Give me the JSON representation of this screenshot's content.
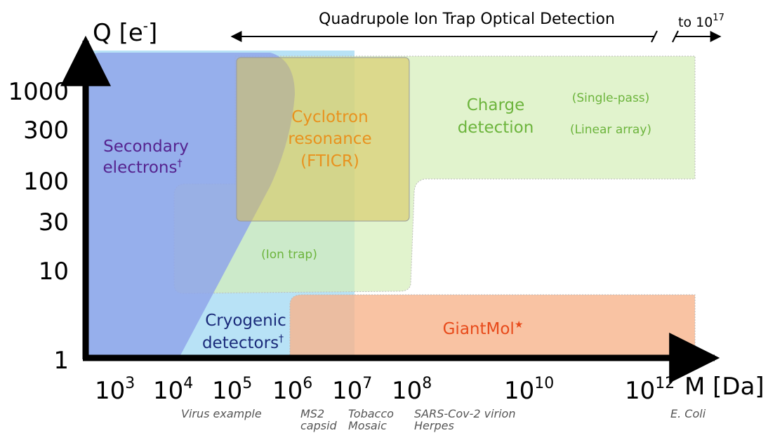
{
  "y_axis": {
    "label": {
      "main": "Q [e",
      "sup": "-",
      "end": "]"
    },
    "ticks": [
      "1000",
      "300",
      "100",
      "30",
      "10",
      "1"
    ]
  },
  "x_axis": {
    "label": "M [Da]",
    "ticks": [
      {
        "base": "10",
        "exp": "3"
      },
      {
        "base": "10",
        "exp": "4"
      },
      {
        "base": "10",
        "exp": "5"
      },
      {
        "base": "10",
        "exp": "6"
      },
      {
        "base": "10",
        "exp": "7"
      },
      {
        "base": "10",
        "exp": "8"
      },
      {
        "base": "10",
        "exp": "10"
      },
      {
        "base": "10",
        "exp": "12"
      }
    ],
    "examples": [
      "Virus example",
      "MS2",
      "capsid",
      "Tobacco",
      "Mosaic",
      "SARS-Cov-2 virion",
      "Herpes",
      "E. Coli"
    ]
  },
  "top_arrow": {
    "label": "Quadrupole Ion Trap Optical Detection",
    "extension": {
      "text": "to 10",
      "sup": "17"
    }
  },
  "regions": {
    "secondary_electrons": {
      "lines": [
        "Secondary",
        "electrons"
      ],
      "mark": "†"
    },
    "cyclotron": {
      "lines": [
        "Cyclotron",
        "resonance",
        "(FTICR)"
      ]
    },
    "charge_detection": {
      "lines": [
        "Charge",
        "detection"
      ],
      "notes": [
        "(Single-pass)",
        "(Linear array)"
      ]
    },
    "ion_trap": {
      "label": "(Ion trap)"
    },
    "cryogenic": {
      "lines": [
        "Cryogenic",
        "detectors"
      ],
      "mark": "†"
    },
    "giantmol": {
      "label": "GiantMol",
      "mark": "★"
    }
  }
}
